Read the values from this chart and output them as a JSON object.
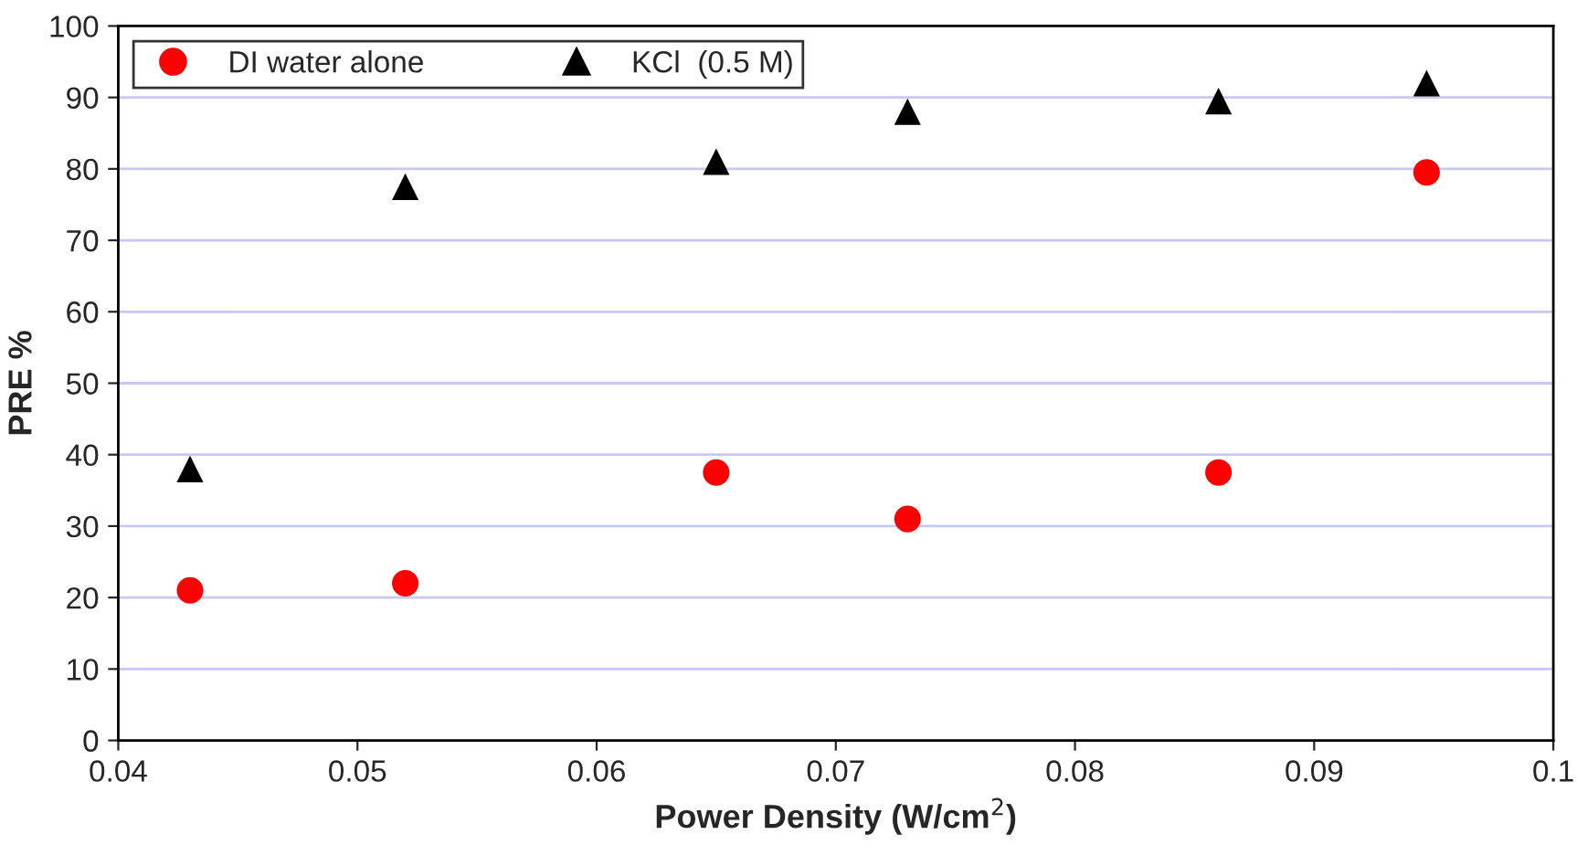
{
  "chart_data": {
    "type": "scatter",
    "xlabel": "Power Density (W/cm$^{2}$)",
    "ylabel": "PRE %",
    "x": [
      0.043,
      0.052,
      0.065,
      0.073,
      0.086,
      0.0947
    ],
    "series": [
      {
        "name": "DI water alone",
        "color": "#ff0000",
        "marker": "circle",
        "values": [
          21,
          22,
          37.5,
          31,
          37.5,
          79.5
        ]
      },
      {
        "name": "KCl  (0.5 M)",
        "color": "#000000",
        "marker": "triangle",
        "values": [
          38,
          77.5,
          81,
          88,
          89.5,
          92
        ]
      }
    ],
    "xlim": [
      0.04,
      0.1
    ],
    "xticks": [
      0.04,
      0.05,
      0.06,
      0.07,
      0.08,
      0.09,
      0.1
    ],
    "ylim": [
      0,
      100
    ],
    "yticks": [
      0,
      10,
      20,
      30,
      40,
      50,
      60,
      70,
      80,
      90,
      100
    ],
    "grid": "y",
    "legend": "top left"
  }
}
